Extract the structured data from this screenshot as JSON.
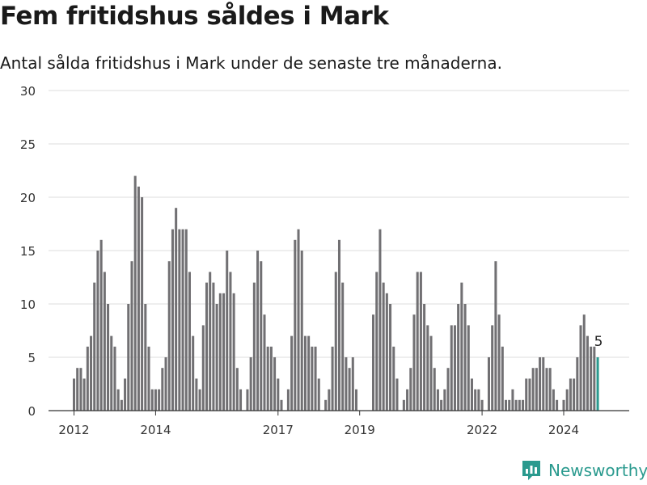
{
  "header": {
    "title": "Fem fritidshus såldes i Mark",
    "subtitle": "Antal sålda fritidshus i Mark under de senaste tre månaderna."
  },
  "brand": {
    "name": "Newsworthy",
    "icon": "newsworthy-logo-icon",
    "color": "#2a9a8e"
  },
  "chart_data": {
    "type": "bar",
    "title": "Fem fritidshus såldes i Mark",
    "subtitle": "Antal sålda fritidshus i Mark under de senaste tre månaderna.",
    "ylim": [
      0,
      30
    ],
    "y_ticks": [
      0,
      5,
      10,
      15,
      20,
      25,
      30
    ],
    "x_ticks": [
      "2012",
      "2014",
      "2017",
      "2019",
      "2022",
      "2024"
    ],
    "grid": true,
    "bar_color": "#717073",
    "highlight_color": "#2a9a8e",
    "highlight_label": "5",
    "x_start": "2012-01",
    "x_end": "2024-12",
    "values": [
      3,
      4,
      4,
      3,
      6,
      7,
      12,
      15,
      16,
      13,
      10,
      7,
      6,
      2,
      1,
      3,
      10,
      14,
      22,
      21,
      20,
      10,
      6,
      2,
      2,
      2,
      4,
      5,
      14,
      17,
      19,
      17,
      17,
      17,
      13,
      7,
      3,
      2,
      8,
      12,
      13,
      12,
      10,
      11,
      11,
      15,
      13,
      11,
      4,
      2,
      0,
      2,
      5,
      12,
      15,
      14,
      9,
      6,
      6,
      5,
      3,
      1,
      0,
      2,
      7,
      16,
      17,
      15,
      7,
      7,
      6,
      6,
      3,
      0,
      1,
      2,
      6,
      13,
      16,
      12,
      5,
      4,
      5,
      2,
      0,
      0,
      0,
      0,
      9,
      13,
      17,
      12,
      11,
      10,
      6,
      3,
      0,
      1,
      2,
      4,
      9,
      13,
      13,
      10,
      8,
      7,
      4,
      2,
      1,
      2,
      4,
      8,
      8,
      10,
      12,
      10,
      8,
      3,
      2,
      2,
      1,
      0,
      5,
      8,
      14,
      9,
      6,
      1,
      1,
      2,
      1,
      1,
      1,
      3,
      3,
      4,
      4,
      5,
      5,
      4,
      4,
      2,
      1,
      0,
      1,
      2,
      3,
      3,
      5,
      8,
      9,
      7,
      6,
      6,
      5
    ]
  }
}
